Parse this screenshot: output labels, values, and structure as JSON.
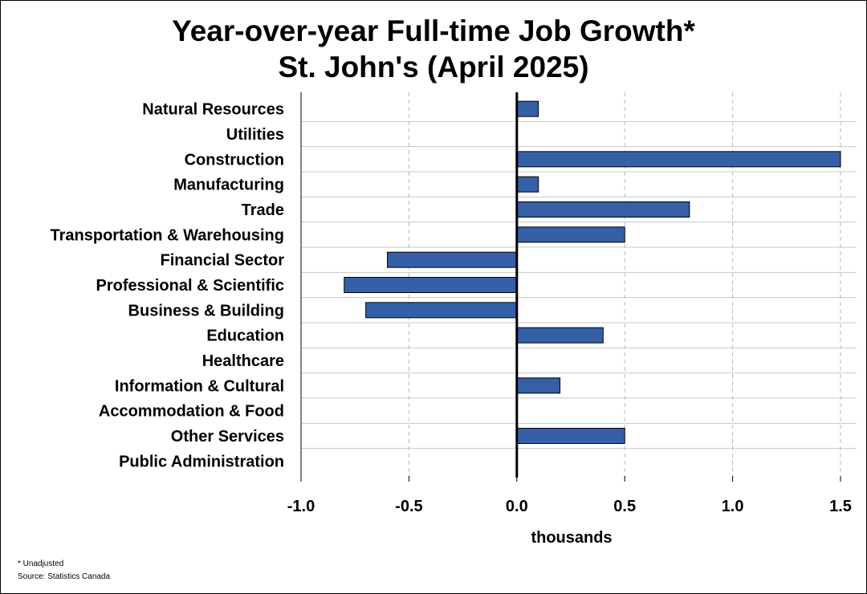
{
  "chart_data": {
    "type": "bar",
    "orientation": "horizontal",
    "title": "Year-over-year Full-time Job Growth*",
    "subtitle": "St. John's (April 2025)",
    "xlabel": "thousands",
    "ylabel": "",
    "xlim": [
      -1.0,
      1.5
    ],
    "xticks": [
      "-1.0",
      "-0.5",
      "0.0",
      "0.5",
      "1.0",
      "1.5"
    ],
    "xtick_values": [
      -1.0,
      -0.5,
      0.0,
      0.5,
      1.0,
      1.5
    ],
    "grid": "vertical dashed",
    "legend": "none",
    "bar_color": "#3560a8",
    "categories": [
      "Natural Resources",
      "Utilities",
      "Construction",
      "Manufacturing",
      "Trade",
      "Transportation & Warehousing",
      "Financial Sector",
      "Professional & Scientific",
      "Business & Building",
      "Education",
      "Healthcare",
      "Information & Cultural",
      "Accommodation & Food",
      "Other Services",
      "Public Administration"
    ],
    "values": [
      0.1,
      0.0,
      1.5,
      0.1,
      0.8,
      0.5,
      -0.6,
      -0.8,
      -0.7,
      0.4,
      0.0,
      0.2,
      0.0,
      0.5,
      0.0
    ]
  },
  "footnotes": {
    "note": "* Unadjusted",
    "source": "Source: Statistics Canada"
  }
}
